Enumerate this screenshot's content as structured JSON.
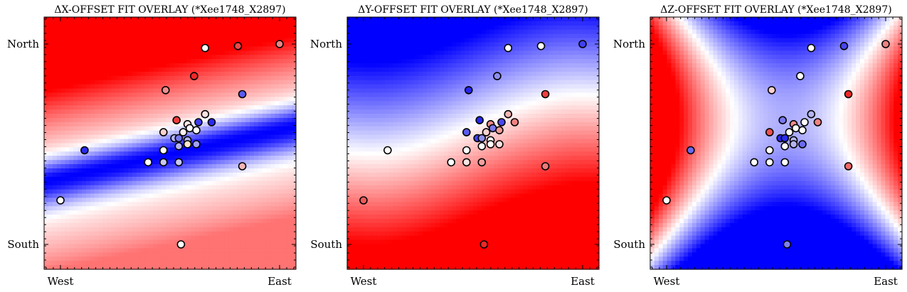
{
  "chart_data": [
    {
      "type": "heatmap",
      "title": "ΔX-OFFSET FIT OVERLAY (*Xee1748_X2897)",
      "x_ticks": [
        "West",
        "East"
      ],
      "y_ticks": [
        "North",
        "South"
      ],
      "field": "dx"
    },
    {
      "type": "heatmap",
      "title": "ΔY-OFFSET FIT OVERLAY (*Xee1748_X2897)",
      "x_ticks": [
        "West",
        "East"
      ],
      "y_ticks": [
        "North",
        "South"
      ],
      "field": "dy"
    },
    {
      "type": "heatmap",
      "title": "ΔZ-OFFSET FIT OVERLAY (*Xee1748_X2897)",
      "x_ticks": [
        "West",
        "East"
      ],
      "y_ticks": [
        "North",
        "South"
      ],
      "field": "dz"
    }
  ],
  "points": [
    {
      "x": 0.0,
      "y": 0.22,
      "c": [
        "#ffffff",
        "#ef5a5a",
        "#ffffff"
      ]
    },
    {
      "x": 0.11,
      "y": 0.47,
      "c": [
        "#2b2bf0",
        "#ffffff",
        "#6a6af0"
      ]
    },
    {
      "x": 0.4,
      "y": 0.41,
      "c": [
        "#ffffff",
        "#ffffff",
        "#ffffff"
      ]
    },
    {
      "x": 0.47,
      "y": 0.41,
      "c": [
        "#c8c8f4",
        "#ffe2e2",
        "#ffffff"
      ]
    },
    {
      "x": 0.54,
      "y": 0.41,
      "c": [
        "#c8c8f4",
        "#f4a0a0",
        "#ffffff"
      ]
    },
    {
      "x": 0.47,
      "y": 0.47,
      "c": [
        "#ffffff",
        "#ffffff",
        "#ffffff"
      ]
    },
    {
      "x": 0.47,
      "y": 0.56,
      "c": [
        "#ffd0d0",
        "#5a5af0",
        "#ef5050"
      ]
    },
    {
      "x": 0.52,
      "y": 0.53,
      "c": [
        "#b4b4f4",
        "#4040f0",
        "#2828f0"
      ]
    },
    {
      "x": 0.54,
      "y": 0.53,
      "c": [
        "#7878f0",
        "#8e8ef0",
        "#2b2bf0"
      ]
    },
    {
      "x": 0.56,
      "y": 0.56,
      "c": [
        "#fff0f0",
        "#ffd0d0",
        "#ffffff"
      ]
    },
    {
      "x": 0.54,
      "y": 0.49,
      "c": [
        "#b4b4f4",
        "#ffffff",
        "#ffffff"
      ]
    },
    {
      "x": 0.58,
      "y": 0.52,
      "c": [
        "#b4b4f4",
        "#ffffff",
        "#b4b4f4"
      ]
    },
    {
      "x": 0.58,
      "y": 0.5,
      "c": [
        "#ffe6cc",
        "#ffffff",
        "#b4b4f4"
      ]
    },
    {
      "x": 0.58,
      "y": 0.6,
      "c": [
        "#ffe8e8",
        "#ef8c8c",
        "#ef8c8c"
      ]
    },
    {
      "x": 0.59,
      "y": 0.58,
      "c": [
        "#ffffff",
        "#7878f0",
        "#ffffff"
      ]
    },
    {
      "x": 0.62,
      "y": 0.5,
      "c": [
        "#a0a0f4",
        "#ffe0e0",
        "#6a6af0"
      ]
    },
    {
      "x": 0.62,
      "y": 0.57,
      "c": [
        "#ffffff",
        "#f49a9a",
        "#ffffff"
      ]
    },
    {
      "x": 0.63,
      "y": 0.61,
      "c": [
        "#3c3cf0",
        "#4848f0",
        "#ffffff"
      ]
    },
    {
      "x": 0.53,
      "y": 0.62,
      "c": [
        "#ef3c3c",
        "#2828f0",
        "#7878f0"
      ]
    },
    {
      "x": 0.66,
      "y": 0.65,
      "c": [
        "#ffe2e2",
        "#f4b4b4",
        "#b4b4f4"
      ]
    },
    {
      "x": 0.69,
      "y": 0.61,
      "c": [
        "#2b2bf0",
        "#f08282",
        "#f08282"
      ]
    },
    {
      "x": 0.48,
      "y": 0.77,
      "c": [
        "#f08c8c",
        "#2828f0",
        "#ffd0d0"
      ]
    },
    {
      "x": 0.61,
      "y": 0.84,
      "c": [
        "#ef2828",
        "#8e8ef0",
        "#ffffff"
      ]
    },
    {
      "x": 0.66,
      "y": 0.98,
      "c": [
        "#ffffff",
        "#ffffff",
        "#ffffff"
      ]
    },
    {
      "x": 0.81,
      "y": 0.99,
      "c": [
        "#ef4848",
        "#ffffff",
        "#4646f0"
      ]
    },
    {
      "x": 0.83,
      "y": 0.75,
      "c": [
        "#5a5af0",
        "#ef4040",
        "#ef2828"
      ]
    },
    {
      "x": 0.83,
      "y": 0.39,
      "c": [
        "#f4b4b4",
        "#ef7878",
        "#ef6868"
      ]
    },
    {
      "x": 1.0,
      "y": 1.0,
      "c": [
        "#f08282",
        "#4040f0",
        "#f08282"
      ]
    },
    {
      "x": 0.55,
      "y": 0.0,
      "c": [
        "#ffffff",
        "#ef2828",
        "#8080f0"
      ]
    }
  ]
}
